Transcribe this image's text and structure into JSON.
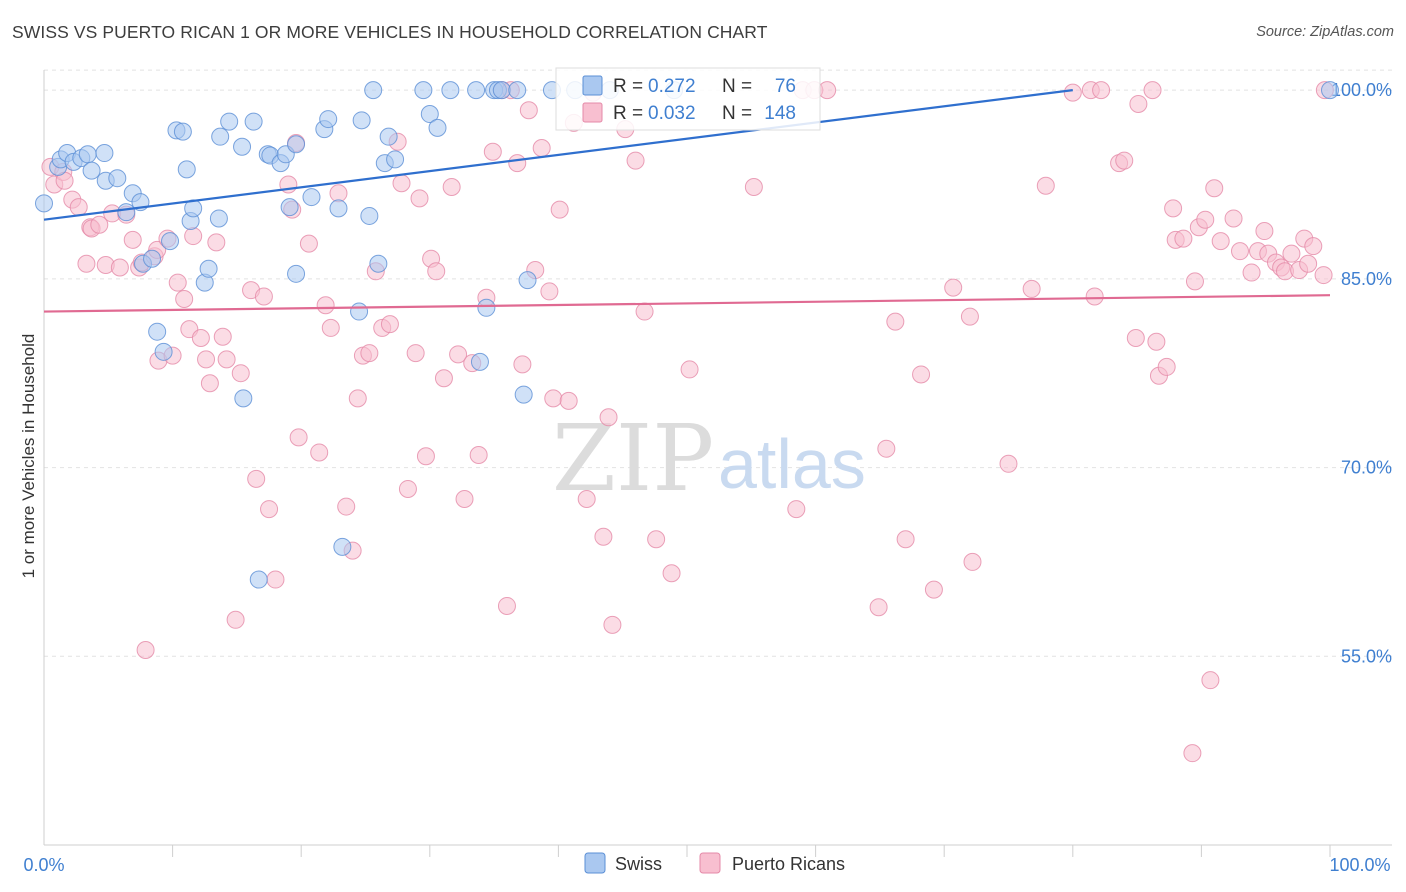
{
  "title": "SWISS VS PUERTO RICAN 1 OR MORE VEHICLES IN HOUSEHOLD CORRELATION CHART",
  "source": "Source: ZipAtlas.com",
  "watermark": {
    "zip": "ZIP",
    "atlas": "atlas"
  },
  "colors": {
    "swiss_fill": "#aac8f0",
    "swiss_stroke": "#5b8fd6",
    "swiss_line": "#2f6fce",
    "pr_fill": "#f8bfd0",
    "pr_stroke": "#e58aa8",
    "pr_line": "#e06a92",
    "label_blue": "#3f7fd0",
    "grid": "#e2e2e2"
  },
  "legend": {
    "r_label": "R =",
    "n_label": "N =",
    "rows": [
      {
        "series": "Swiss",
        "r": "0.272",
        "n": "76"
      },
      {
        "series": "Puerto Ricans",
        "r": "0.032",
        "n": "148"
      }
    ]
  },
  "chart_data": {
    "type": "scatter",
    "title": "SWISS VS PUERTO RICAN 1 OR MORE VEHICLES IN HOUSEHOLD CORRELATION CHART",
    "xlabel": "",
    "ylabel": "1 or more Vehicles in Household",
    "xlim": [
      0,
      100
    ],
    "ylim": [
      40,
      101.6
    ],
    "x_tick_labels": [
      "0.0%",
      "100.0%"
    ],
    "y_tick_labels": [
      "55.0%",
      "70.0%",
      "85.0%",
      "100.0%"
    ],
    "y_ticks": [
      55,
      70,
      85,
      100
    ],
    "grid": true,
    "legend_position": "top-center",
    "series": [
      {
        "name": "Swiss",
        "trend": {
          "x": [
            0,
            80
          ],
          "y": [
            89.7,
            100.0
          ]
        },
        "points": [
          [
            0,
            91.0
          ],
          [
            1.1,
            93.9
          ],
          [
            1.3,
            94.5
          ],
          [
            1.8,
            95.0
          ],
          [
            2.3,
            94.3
          ],
          [
            2.9,
            94.6
          ],
          [
            3.4,
            94.9
          ],
          [
            3.7,
            93.6
          ],
          [
            4.7,
            95.0
          ],
          [
            4.8,
            92.8
          ],
          [
            5.7,
            93.0
          ],
          [
            6.4,
            90.3
          ],
          [
            6.9,
            91.8
          ],
          [
            7.5,
            91.1
          ],
          [
            7.7,
            86.2
          ],
          [
            8.4,
            86.6
          ],
          [
            8.8,
            80.8
          ],
          [
            9.3,
            79.2
          ],
          [
            9.8,
            88.0
          ],
          [
            10.3,
            96.8
          ],
          [
            10.8,
            96.7
          ],
          [
            11.1,
            93.7
          ],
          [
            11.4,
            89.6
          ],
          [
            11.6,
            90.6
          ],
          [
            12.5,
            84.7
          ],
          [
            12.8,
            85.8
          ],
          [
            13.6,
            89.8
          ],
          [
            13.7,
            96.3
          ],
          [
            14.4,
            97.5
          ],
          [
            15.4,
            95.5
          ],
          [
            15.5,
            75.5
          ],
          [
            16.3,
            97.5
          ],
          [
            16.7,
            61.1
          ],
          [
            17.4,
            94.9
          ],
          [
            17.6,
            94.8
          ],
          [
            18.4,
            94.2
          ],
          [
            18.8,
            94.9
          ],
          [
            19.1,
            90.7
          ],
          [
            19.6,
            95.7
          ],
          [
            19.6,
            85.4
          ],
          [
            20.8,
            91.5
          ],
          [
            21.8,
            96.9
          ],
          [
            22.1,
            97.7
          ],
          [
            22.9,
            90.6
          ],
          [
            23.2,
            63.7
          ],
          [
            24.5,
            82.4
          ],
          [
            24.7,
            97.6
          ],
          [
            25.3,
            90.0
          ],
          [
            25.6,
            100.0
          ],
          [
            26.0,
            86.2
          ],
          [
            26.5,
            94.2
          ],
          [
            26.8,
            96.3
          ],
          [
            27.3,
            94.5
          ],
          [
            29.5,
            100.0
          ],
          [
            30.0,
            98.1
          ],
          [
            30.6,
            97.0
          ],
          [
            31.6,
            100.0
          ],
          [
            33.6,
            100.0
          ],
          [
            33.9,
            78.4
          ],
          [
            34.4,
            82.7
          ],
          [
            35.0,
            100.0
          ],
          [
            35.3,
            100.0
          ],
          [
            35.6,
            100.0
          ],
          [
            36.8,
            100.0
          ],
          [
            37.3,
            75.8
          ],
          [
            37.6,
            84.9
          ],
          [
            39.5,
            100.0
          ],
          [
            41.3,
            100.0
          ],
          [
            44.0,
            100.0
          ],
          [
            49.0,
            100.0
          ],
          [
            100,
            100.0
          ]
        ]
      },
      {
        "name": "Puerto Ricans",
        "trend": {
          "x": [
            0,
            100
          ],
          "y": [
            82.4,
            83.7
          ]
        },
        "points": [
          [
            0.5,
            93.9
          ],
          [
            0.8,
            92.5
          ],
          [
            1.5,
            93.5
          ],
          [
            1.6,
            92.8
          ],
          [
            2.2,
            91.3
          ],
          [
            2.7,
            90.7
          ],
          [
            3.3,
            86.2
          ],
          [
            3.6,
            89.1
          ],
          [
            3.7,
            89.0
          ],
          [
            4.3,
            89.3
          ],
          [
            4.8,
            86.1
          ],
          [
            5.3,
            90.2
          ],
          [
            5.9,
            85.9
          ],
          [
            6.4,
            90.1
          ],
          [
            6.9,
            88.1
          ],
          [
            7.4,
            85.9
          ],
          [
            7.6,
            86.3
          ],
          [
            7.9,
            55.5
          ],
          [
            8.6,
            86.8
          ],
          [
            8.8,
            87.3
          ],
          [
            8.9,
            78.5
          ],
          [
            9.6,
            88.2
          ],
          [
            10.0,
            78.9
          ],
          [
            10.4,
            84.7
          ],
          [
            10.9,
            83.4
          ],
          [
            11.3,
            81.0
          ],
          [
            11.6,
            88.4
          ],
          [
            12.2,
            80.3
          ],
          [
            12.6,
            78.6
          ],
          [
            12.9,
            76.7
          ],
          [
            13.4,
            87.9
          ],
          [
            13.9,
            80.4
          ],
          [
            14.2,
            78.6
          ],
          [
            14.9,
            57.9
          ],
          [
            15.3,
            77.5
          ],
          [
            16.1,
            84.1
          ],
          [
            16.5,
            69.1
          ],
          [
            17.1,
            83.6
          ],
          [
            17.5,
            66.7
          ],
          [
            18.0,
            61.1
          ],
          [
            19.0,
            92.5
          ],
          [
            19.3,
            90.5
          ],
          [
            19.6,
            95.8
          ],
          [
            19.8,
            72.4
          ],
          [
            20.6,
            87.8
          ],
          [
            21.4,
            71.2
          ],
          [
            21.9,
            82.9
          ],
          [
            22.3,
            81.1
          ],
          [
            22.9,
            91.8
          ],
          [
            23.5,
            66.9
          ],
          [
            24.0,
            63.4
          ],
          [
            24.4,
            75.5
          ],
          [
            24.8,
            78.9
          ],
          [
            25.3,
            79.1
          ],
          [
            25.8,
            85.6
          ],
          [
            26.3,
            81.1
          ],
          [
            26.9,
            81.4
          ],
          [
            27.5,
            95.9
          ],
          [
            27.8,
            92.6
          ],
          [
            28.3,
            68.3
          ],
          [
            28.9,
            79.1
          ],
          [
            29.2,
            91.4
          ],
          [
            29.7,
            70.9
          ],
          [
            30.1,
            86.6
          ],
          [
            30.5,
            85.6
          ],
          [
            31.1,
            77.1
          ],
          [
            31.7,
            92.3
          ],
          [
            32.2,
            79.0
          ],
          [
            32.7,
            67.5
          ],
          [
            33.3,
            78.3
          ],
          [
            33.8,
            71.0
          ],
          [
            34.4,
            83.5
          ],
          [
            34.9,
            95.1
          ],
          [
            35.6,
            100.0
          ],
          [
            36.0,
            59.0
          ],
          [
            36.3,
            100.0
          ],
          [
            36.8,
            94.2
          ],
          [
            37.2,
            78.2
          ],
          [
            37.7,
            98.4
          ],
          [
            38.2,
            85.7
          ],
          [
            38.7,
            95.4
          ],
          [
            39.3,
            84.0
          ],
          [
            39.6,
            75.5
          ],
          [
            40.1,
            90.5
          ],
          [
            40.8,
            75.3
          ],
          [
            41.2,
            97.4
          ],
          [
            42.2,
            67.5
          ],
          [
            42.7,
            99.8
          ],
          [
            43.5,
            64.5
          ],
          [
            43.9,
            74.0
          ],
          [
            44.2,
            57.5
          ],
          [
            45.2,
            96.9
          ],
          [
            46.0,
            94.4
          ],
          [
            46.7,
            82.4
          ],
          [
            47.6,
            64.3
          ],
          [
            48.8,
            61.6
          ],
          [
            50.2,
            77.8
          ],
          [
            55.2,
            92.3
          ],
          [
            58.5,
            66.7
          ],
          [
            59.0,
            100.0
          ],
          [
            59.9,
            100.0
          ],
          [
            60.9,
            100.0
          ],
          [
            64.9,
            58.9
          ],
          [
            65.5,
            71.5
          ],
          [
            66.2,
            81.6
          ],
          [
            67.0,
            64.3
          ],
          [
            68.2,
            77.4
          ],
          [
            69.2,
            60.3
          ],
          [
            70.7,
            84.3
          ],
          [
            72.0,
            82.0
          ],
          [
            72.2,
            62.5
          ],
          [
            75.0,
            70.3
          ],
          [
            76.8,
            84.2
          ],
          [
            77.9,
            92.4
          ],
          [
            80.0,
            99.8
          ],
          [
            81.7,
            83.6
          ],
          [
            81.4,
            100.0
          ],
          [
            82.2,
            100.0
          ],
          [
            83.6,
            94.2
          ],
          [
            84.0,
            94.4
          ],
          [
            84.9,
            80.3
          ],
          [
            85.1,
            98.9
          ],
          [
            86.2,
            100.0
          ],
          [
            86.5,
            80.0
          ],
          [
            86.7,
            77.3
          ],
          [
            87.3,
            78.0
          ],
          [
            87.8,
            90.6
          ],
          [
            88.0,
            88.1
          ],
          [
            88.6,
            88.2
          ],
          [
            89.3,
            47.3
          ],
          [
            89.5,
            84.8
          ],
          [
            89.8,
            89.1
          ],
          [
            90.3,
            89.7
          ],
          [
            90.7,
            53.1
          ],
          [
            91.0,
            92.2
          ],
          [
            91.5,
            88.0
          ],
          [
            92.5,
            89.8
          ],
          [
            93.0,
            87.2
          ],
          [
            93.9,
            85.5
          ],
          [
            94.4,
            87.2
          ],
          [
            94.9,
            88.8
          ],
          [
            95.2,
            87.0
          ],
          [
            95.8,
            86.3
          ],
          [
            96.2,
            85.9
          ],
          [
            96.5,
            85.6
          ],
          [
            97.0,
            87.0
          ],
          [
            97.6,
            85.7
          ],
          [
            98.0,
            88.2
          ],
          [
            98.3,
            86.2
          ],
          [
            98.7,
            87.6
          ],
          [
            99.5,
            85.3
          ],
          [
            99.6,
            100.0
          ]
        ]
      }
    ]
  },
  "bottom_legend": [
    {
      "label": "Swiss"
    },
    {
      "label": "Puerto Ricans"
    }
  ]
}
